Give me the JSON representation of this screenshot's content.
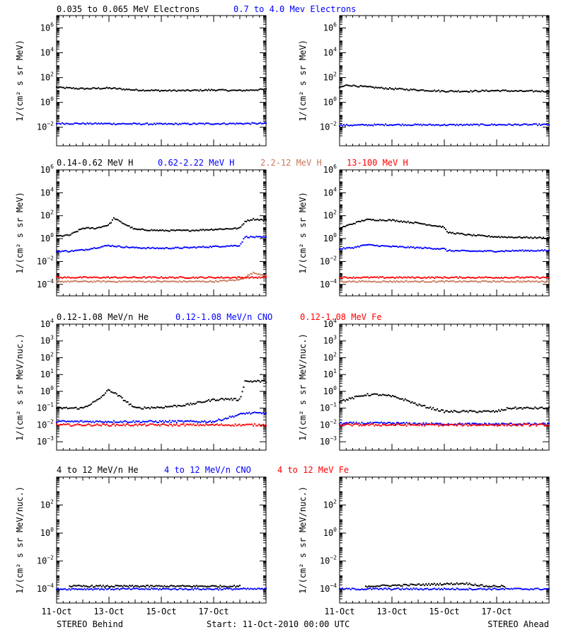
{
  "footer": {
    "left": "STEREO Behind",
    "center": "Start: 11-Oct-2010 00:00 UTC",
    "right": "STEREO Ahead"
  },
  "chart_data": [
    {
      "type": "scatter",
      "row": 1,
      "legend": [
        {
          "label": "0.035 to 0.065 MeV Electrons",
          "color": "#000000"
        },
        {
          "label": "0.7 to 4.0 Mev Electrons",
          "color": "#0000ff"
        }
      ],
      "ylabel": "1/(cm² s sr MeV)",
      "y_log": true,
      "ylim_exp": [
        -3.5,
        7
      ],
      "yticks_exp": [
        -2,
        0,
        2,
        4,
        6
      ],
      "xlim_days": [
        0,
        8
      ],
      "xticks": [
        "11-Oct",
        "13-Oct",
        "15-Oct",
        "17-Oct"
      ],
      "panels": [
        {
          "spacecraft": "STEREO Behind",
          "series": [
            {
              "name": "0.035 to 0.065 MeV Electrons",
              "color": "#000000",
              "x": [
                0,
                1,
                2,
                3,
                4,
                5,
                6,
                7,
                8
              ],
              "log_y": [
                1.2,
                1.1,
                1.15,
                1.0,
                0.95,
                0.95,
                1.0,
                0.95,
                1.05
              ]
            },
            {
              "name": "0.7 to 4.0 Mev Electrons",
              "color": "#0000ff",
              "x": [
                0,
                2,
                4,
                6,
                8
              ],
              "log_y": [
                -1.7,
                -1.72,
                -1.75,
                -1.72,
                -1.7
              ]
            }
          ]
        },
        {
          "spacecraft": "STEREO Ahead",
          "series": [
            {
              "name": "0.035 to 0.065 MeV Electrons",
              "color": "#000000",
              "x": [
                0,
                0.3,
                1,
                2,
                3,
                4,
                5,
                6,
                7,
                8
              ],
              "log_y": [
                1.2,
                1.4,
                1.25,
                1.1,
                1.0,
                0.9,
                0.9,
                0.95,
                0.9,
                0.9
              ]
            },
            {
              "name": "0.7 to 4.0 Mev Electrons",
              "color": "#0000ff",
              "x": [
                0,
                2,
                4,
                6,
                8
              ],
              "log_y": [
                -1.85,
                -1.8,
                -1.82,
                -1.8,
                -1.8
              ]
            }
          ]
        }
      ]
    },
    {
      "type": "scatter",
      "row": 2,
      "legend": [
        {
          "label": "0.14-0.62 MeV H",
          "color": "#000000"
        },
        {
          "label": "0.62-2.22 MeV H",
          "color": "#0000ff"
        },
        {
          "label": "2.2-12 MeV H",
          "color": "#c8785a"
        },
        {
          "label": "13-100 MeV H",
          "color": "#ff0000"
        }
      ],
      "ylabel": "1/(cm² s sr MeV)",
      "y_log": true,
      "ylim_exp": [
        -5,
        6
      ],
      "yticks_exp": [
        -4,
        -2,
        0,
        2,
        4,
        6
      ],
      "xlim_days": [
        0,
        8
      ],
      "xticks": [
        "11-Oct",
        "13-Oct",
        "15-Oct",
        "17-Oct"
      ],
      "panels": [
        {
          "spacecraft": "STEREO Behind",
          "series": [
            {
              "name": "0.14-0.62 MeV H",
              "color": "#000000",
              "x": [
                0,
                0.5,
                1.0,
                1.5,
                2.0,
                2.2,
                2.4,
                3.0,
                4.0,
                5.0,
                6.0,
                7.0,
                7.2,
                7.5,
                8.0
              ],
              "log_y": [
                0.2,
                0.3,
                0.9,
                0.9,
                1.2,
                1.8,
                1.5,
                0.8,
                0.7,
                0.7,
                0.8,
                0.9,
                1.5,
                1.7,
                1.6
              ]
            },
            {
              "name": "0.62-2.22 MeV H",
              "color": "#0000ff",
              "x": [
                0,
                0.5,
                1.0,
                2.0,
                2.4,
                3.0,
                4.0,
                5.0,
                6.0,
                7.0,
                7.2,
                8.0
              ],
              "log_y": [
                -1.1,
                -1.1,
                -1.0,
                -0.6,
                -0.7,
                -0.8,
                -0.85,
                -0.8,
                -0.7,
                -0.6,
                0.15,
                0.1
              ]
            },
            {
              "name": "2.2-12 MeV H",
              "color": "#c8785a",
              "x": [
                0,
                2,
                4,
                6,
                7.0,
                7.5,
                8.0
              ],
              "log_y": [
                -3.75,
                -3.75,
                -3.75,
                -3.75,
                -3.6,
                -3.0,
                -3.2
              ]
            },
            {
              "name": "13-100 MeV H",
              "color": "#ff0000",
              "x": [
                0,
                2,
                4,
                6,
                8
              ],
              "log_y": [
                -3.4,
                -3.4,
                -3.4,
                -3.4,
                -3.4
              ]
            }
          ]
        },
        {
          "spacecraft": "STEREO Ahead",
          "series": [
            {
              "name": "0.14-0.62 MeV H",
              "color": "#000000",
              "x": [
                0,
                0.5,
                1.0,
                2.0,
                3.0,
                4.0,
                4.1,
                5.0,
                6.0,
                7.0,
                8.0
              ],
              "log_y": [
                0.9,
                1.3,
                1.65,
                1.6,
                1.35,
                1.0,
                0.55,
                0.3,
                0.15,
                0.1,
                0.05
              ]
            },
            {
              "name": "0.62-2.22 MeV H",
              "color": "#0000ff",
              "x": [
                0,
                0.5,
                1.0,
                2.0,
                3.0,
                4.0,
                4.1,
                5.0,
                6.0,
                7.0,
                8.0
              ],
              "log_y": [
                -0.9,
                -0.8,
                -0.55,
                -0.7,
                -0.8,
                -0.9,
                -1.05,
                -1.1,
                -1.1,
                -1.05,
                -1.05
              ]
            },
            {
              "name": "2.2-12 MeV H",
              "color": "#c8785a",
              "x": [
                0,
                2,
                4,
                6,
                8
              ],
              "log_y": [
                -3.75,
                -3.75,
                -3.75,
                -3.75,
                -3.75
              ]
            },
            {
              "name": "13-100 MeV H",
              "color": "#ff0000",
              "x": [
                0,
                2,
                4,
                6,
                8
              ],
              "log_y": [
                -3.4,
                -3.4,
                -3.4,
                -3.4,
                -3.4
              ]
            }
          ]
        }
      ]
    },
    {
      "type": "scatter",
      "row": 3,
      "legend": [
        {
          "label": "0.12-1.08 MeV/n He",
          "color": "#000000"
        },
        {
          "label": "0.12-1.08 MeV/n CNO",
          "color": "#0000ff"
        },
        {
          "label": "0.12-1.08 MeV Fe",
          "color": "#ff0000"
        }
      ],
      "ylabel": "1/(cm² s sr MeV/nuc.)",
      "y_log": true,
      "ylim_exp": [
        -3.5,
        4
      ],
      "yticks_exp": [
        -3,
        -2,
        -1,
        0,
        1,
        2,
        3,
        4
      ],
      "xlim_days": [
        0,
        8
      ],
      "xticks": [
        "11-Oct",
        "13-Oct",
        "15-Oct",
        "17-Oct"
      ],
      "panels": [
        {
          "spacecraft": "STEREO Behind",
          "series": [
            {
              "name": "0.12-1.08 MeV/n He",
              "color": "#000000",
              "x": [
                0,
                1.0,
                1.6,
                2.0,
                2.4,
                3.0,
                4.0,
                5.0,
                6.0,
                6.5,
                7.0,
                7.2,
                8.0
              ],
              "log_y": [
                -1.0,
                -1.0,
                -0.5,
                0.1,
                -0.3,
                -1.0,
                -0.95,
                -0.8,
                -0.5,
                -0.45,
                -0.5,
                0.6,
                0.6
              ]
            },
            {
              "name": "0.12-1.08 MeV/n CNO",
              "color": "#0000ff",
              "x": [
                0,
                2,
                4,
                6,
                7.2,
                8.0
              ],
              "log_y": [
                -1.8,
                -1.8,
                -1.8,
                -1.8,
                -1.3,
                -1.3
              ]
            },
            {
              "name": "0.12-1.08 MeV Fe",
              "color": "#ff0000",
              "x": [
                0,
                2,
                4,
                6,
                8
              ],
              "log_y": [
                -2.0,
                -2.0,
                -2.0,
                -2.0,
                -2.0
              ]
            }
          ]
        },
        {
          "spacecraft": "STEREO Ahead",
          "series": [
            {
              "name": "0.12-1.08 MeV/n He",
              "color": "#000000",
              "x": [
                0,
                0.5,
                1.0,
                1.5,
                2.0,
                2.5,
                3.0,
                4.0,
                5.0,
                6.0,
                6.5,
                7.0,
                8.0
              ],
              "log_y": [
                -0.6,
                -0.4,
                -0.2,
                -0.2,
                -0.3,
                -0.5,
                -0.8,
                -1.2,
                -1.2,
                -1.2,
                -1.0,
                -1.0,
                -1.0
              ]
            },
            {
              "name": "0.12-1.08 MeV/n CNO",
              "color": "#0000ff",
              "x": [
                0,
                2,
                4,
                6,
                8
              ],
              "log_y": [
                -1.9,
                -1.9,
                -1.95,
                -1.95,
                -1.95
              ]
            },
            {
              "name": "0.12-1.08 MeV Fe",
              "color": "#ff0000",
              "x": [
                0,
                2,
                4,
                6,
                8
              ],
              "log_y": [
                -2.0,
                -2.0,
                -2.0,
                -2.0,
                -2.0
              ]
            }
          ]
        }
      ]
    },
    {
      "type": "scatter",
      "row": 4,
      "legend": [
        {
          "label": "4 to 12 MeV/n He",
          "color": "#000000"
        },
        {
          "label": "4 to 12 MeV/n CNO",
          "color": "#0000ff"
        },
        {
          "label": "4 to 12 MeV Fe",
          "color": "#ff0000"
        }
      ],
      "ylabel": "1/(cm² s sr MeV/nuc.)",
      "y_log": true,
      "ylim_exp": [
        -5,
        4
      ],
      "yticks_exp": [
        -4,
        -2,
        0,
        2
      ],
      "xlim_days": [
        0,
        8
      ],
      "xticks": [
        "11-Oct",
        "13-Oct",
        "15-Oct",
        "17-Oct"
      ],
      "panels": [
        {
          "spacecraft": "STEREO Behind",
          "series": [
            {
              "name": "4 to 12 MeV/n He",
              "color": "#000000",
              "x": [
                0.5,
                1.3,
                2.2,
                3.0,
                4.5,
                6.1,
                7.0
              ],
              "log_y": [
                -3.8,
                -3.8,
                -3.8,
                -3.8,
                -3.8,
                -3.8,
                -3.8
              ]
            },
            {
              "name": "4 to 12 MeV/n CNO",
              "color": "#0000ff",
              "x": [
                0,
                2,
                4,
                6,
                8
              ],
              "log_y": [
                -4.0,
                -4.0,
                -4.0,
                -4.0,
                -4.0
              ]
            }
          ]
        },
        {
          "spacecraft": "STEREO Ahead",
          "series": [
            {
              "name": "4 to 12 MeV/n He",
              "color": "#000000",
              "x": [
                1.0,
                4.8,
                5.6,
                6.3
              ],
              "log_y": [
                -3.8,
                -3.6,
                -3.8,
                -3.8
              ]
            },
            {
              "name": "4 to 12 MeV/n CNO",
              "color": "#0000ff",
              "x": [
                0,
                2,
                4,
                6,
                8
              ],
              "log_y": [
                -4.0,
                -4.0,
                -4.0,
                -4.0,
                -4.0
              ]
            }
          ]
        }
      ]
    }
  ]
}
